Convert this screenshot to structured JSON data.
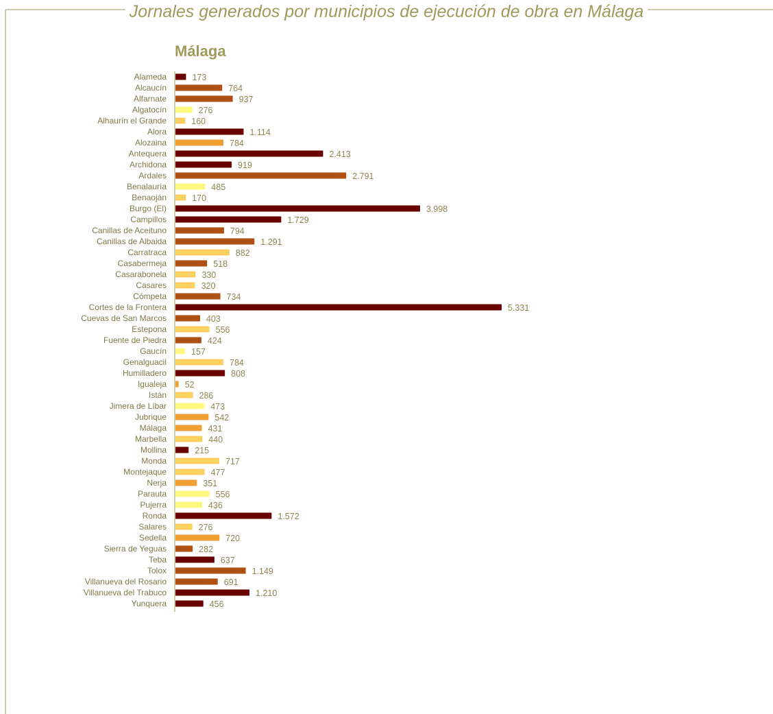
{
  "header": {
    "title": "Jornales generados por municipios de ejecución de obra en Málaga"
  },
  "colors": {
    "frame": "#9f9a5c",
    "dark_red": "#6b0000",
    "rust": "#b04f12",
    "orange": "#f0a030",
    "light_orange": "#fad060",
    "yellow": "#fff880",
    "text": "#7d7a45"
  },
  "chart_data": {
    "type": "bar",
    "orientation": "horizontal",
    "title": "Málaga",
    "xlabel": "",
    "ylabel": "",
    "xlim": [
      0,
      5600
    ],
    "grid": false,
    "legend": "none",
    "categories": [
      "Alameda",
      "Alcaucín",
      "Alfarnate",
      "Algatocín",
      "Alhaurín el Grande",
      "Alora",
      "Alozaina",
      "Antequera",
      "Archidona",
      "Ardales",
      "Benalauría",
      "Benaoján",
      "Burgo (El)",
      "Campillos",
      "Canillas de Aceituno",
      "Canillas de Albaida",
      "Carratraca",
      "Casabermeja",
      "Casarabonela",
      "Casares",
      "Cómpeta",
      "Cortes de la Frontera",
      "Cuevas de San Marcos",
      "Estepona",
      "Fuente de Piedra",
      "Gaucín",
      "Genalguacil",
      "Humilladero",
      "Igualeja",
      "Istán",
      "Jimera de Líbar",
      "Jubrique",
      "Málaga",
      "Marbella",
      "Mollina",
      "Monda",
      "Montejaque",
      "Nerja",
      "Parauta",
      "Pujerra",
      "Ronda",
      "Salares",
      "Sedella",
      "Sierra de Yeguas",
      "Teba",
      "Tolox",
      "Villanueva del Rosario",
      "Villanueva del Trabuco",
      "Yunquera"
    ],
    "values": [
      173,
      764,
      937,
      276,
      160,
      1114,
      784,
      2413,
      919,
      2791,
      485,
      170,
      3998,
      1729,
      794,
      1291,
      882,
      518,
      330,
      320,
      734,
      5331,
      403,
      556,
      424,
      157,
      784,
      808,
      52,
      286,
      473,
      542,
      431,
      440,
      215,
      717,
      477,
      351,
      556,
      436,
      1572,
      276,
      720,
      282,
      637,
      1149,
      691,
      1210,
      456
    ],
    "value_labels": [
      "173",
      "764",
      "937",
      "276",
      "160",
      "1.114",
      "784",
      "2.413",
      "919",
      "2.791",
      "485",
      "170",
      "3.998",
      "1.729",
      "794",
      "1.291",
      "882",
      "518",
      "330",
      "320",
      "734",
      "5.331",
      "403",
      "556",
      "424",
      "157",
      "784",
      "808",
      "52",
      "286",
      "473",
      "542",
      "431",
      "440",
      "215",
      "717",
      "477",
      "351",
      "556",
      "436",
      "1.572",
      "276",
      "720",
      "282",
      "637",
      "1.149",
      "691",
      "1.210",
      "456"
    ],
    "bar_colors": [
      "#6b0000",
      "#b04f12",
      "#b04f12",
      "#fff880",
      "#fad060",
      "#6b0000",
      "#f0a030",
      "#6b0000",
      "#6b0000",
      "#b04f12",
      "#fff880",
      "#fad060",
      "#6b0000",
      "#6b0000",
      "#b04f12",
      "#b04f12",
      "#fad060",
      "#b04f12",
      "#fad060",
      "#fad060",
      "#b04f12",
      "#6b0000",
      "#b04f12",
      "#fad060",
      "#b04f12",
      "#fff880",
      "#fad060",
      "#6b0000",
      "#f0a030",
      "#fad060",
      "#fff880",
      "#f0a030",
      "#f0a030",
      "#fad060",
      "#6b0000",
      "#fad060",
      "#fad060",
      "#f0a030",
      "#fff880",
      "#fff880",
      "#6b0000",
      "#fad060",
      "#f0a030",
      "#b04f12",
      "#6b0000",
      "#b04f12",
      "#b04f12",
      "#6b0000",
      "#6b0000"
    ]
  }
}
